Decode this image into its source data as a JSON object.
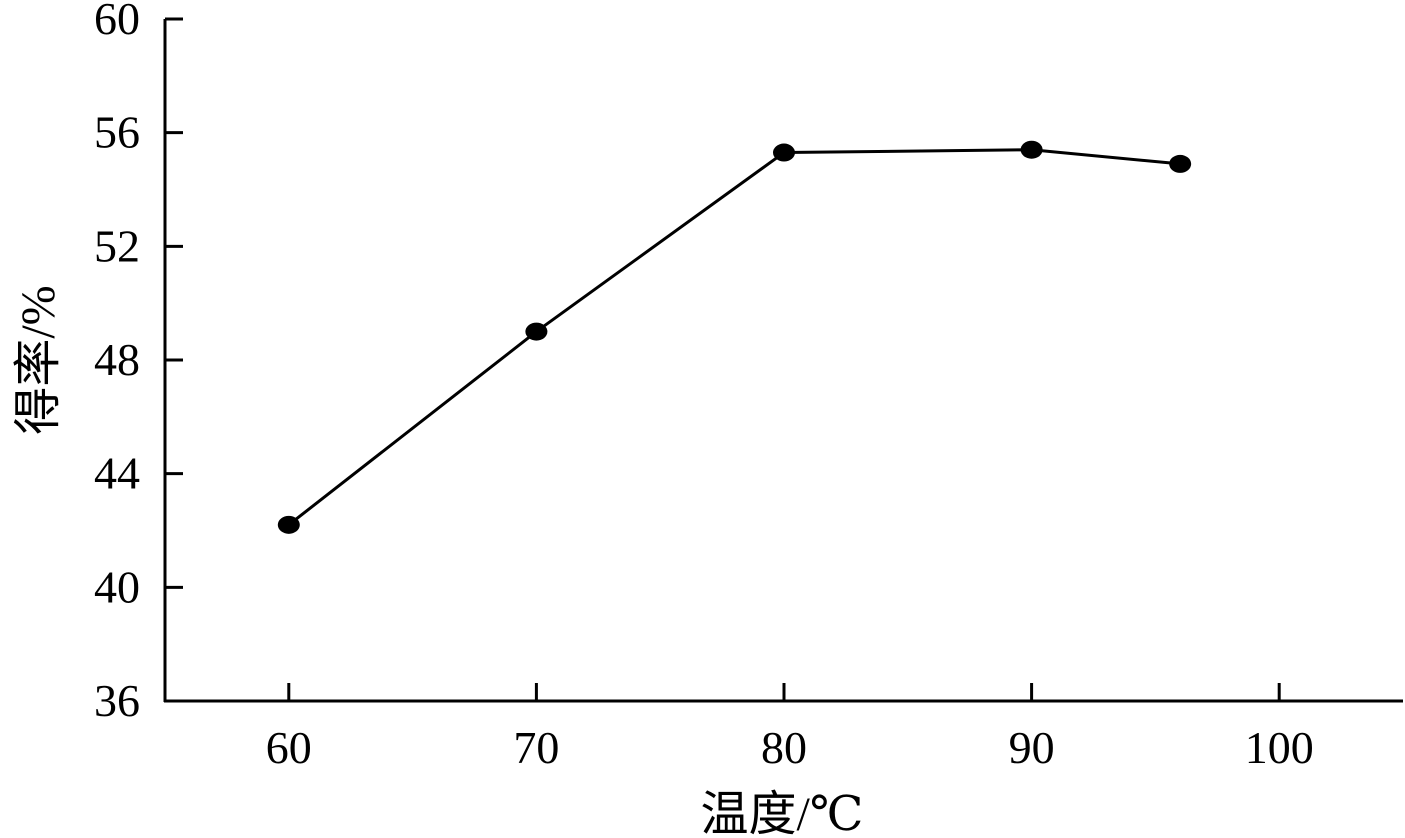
{
  "chart_data": {
    "type": "line",
    "xlabel": "温度/℃",
    "ylabel": "得率/%",
    "xlim": [
      55,
      105
    ],
    "ylim": [
      36,
      60
    ],
    "x_ticks": [
      60,
      70,
      80,
      90,
      100
    ],
    "x_tick_labels": [
      "60",
      "70",
      "80",
      "90",
      "100"
    ],
    "y_ticks": [
      36,
      40,
      44,
      48,
      52,
      56,
      60
    ],
    "y_tick_labels": [
      "36",
      "40",
      "44",
      "48",
      "52",
      "56",
      "60"
    ],
    "grid": false,
    "legend": "none",
    "series": [
      {
        "x": [
          60,
          70,
          80,
          90,
          96
        ],
        "y": [
          42.2,
          49.0,
          55.3,
          55.4,
          54.9
        ]
      }
    ],
    "colors": {
      "line": "#000000",
      "marker": "#000000",
      "axis": "#000000",
      "background": "#ffffff"
    }
  }
}
